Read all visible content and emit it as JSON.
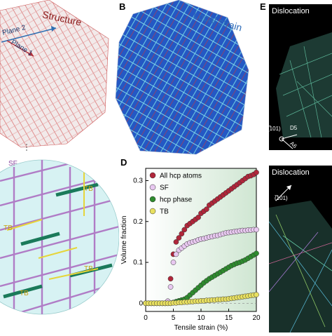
{
  "panels": {
    "a": {
      "title": "Structure",
      "plane2": "Plane 2",
      "plane1": "Plane 1",
      "colors": {
        "atoms": "#d9534f",
        "bg": "#f4f4f4"
      }
    },
    "b": {
      "letter": "B",
      "title": "Local strain",
      "colors": {
        "low": "#1f4fbf",
        "mid": "#5bc0de",
        "high": "#d9302b"
      }
    },
    "c": {
      "labels": [
        "SF",
        "TB",
        "TB",
        "TB",
        "TB"
      ],
      "colors": {
        "sf": "#b07cc6",
        "tb": "#e6d53a",
        "hcp": "#1a7a5a",
        "bg": "#c9eef0"
      }
    },
    "d": {
      "letter": "D"
    },
    "e": {
      "letter": "E",
      "title_top": "Dislocation",
      "title_bottom": "Dislocation",
      "dir_top": "(̅101)",
      "dir_bottom": "(̅101)",
      "axis1": "D5",
      "axis2": "A6"
    }
  },
  "chart_data": {
    "type": "scatter",
    "xlabel": "Tensile strain (%)",
    "ylabel": "Volume fraction",
    "xlim": [
      0,
      20
    ],
    "ylim": [
      -0.02,
      0.33
    ],
    "xticks": [
      "0",
      "5",
      "10",
      "15",
      "20"
    ],
    "yticks": [
      "0",
      "0.1",
      "0.2",
      "0.3"
    ],
    "legend_position": "top-left",
    "series": [
      {
        "name": "All hcp atoms",
        "color": "#b0263a",
        "x": [
          0,
          0.5,
          1,
          1.5,
          2,
          2.5,
          3,
          3.5,
          4,
          4.5,
          5,
          5.5,
          6,
          6.5,
          7,
          7.5,
          8,
          8.5,
          9,
          9.5,
          10,
          10.5,
          11,
          11.5,
          12,
          12.5,
          13,
          13.5,
          14,
          14.5,
          15,
          15.5,
          16,
          16.5,
          17,
          17.5,
          18,
          18.5,
          19,
          19.5,
          20
        ],
        "values": [
          0,
          0,
          0,
          0,
          0,
          0,
          0,
          0,
          0.005,
          0.06,
          0.12,
          0.15,
          0.16,
          0.17,
          0.18,
          0.19,
          0.195,
          0.2,
          0.205,
          0.21,
          0.22,
          0.225,
          0.23,
          0.24,
          0.245,
          0.25,
          0.255,
          0.26,
          0.265,
          0.27,
          0.275,
          0.28,
          0.285,
          0.29,
          0.295,
          0.3,
          0.305,
          0.31,
          0.312,
          0.315,
          0.32
        ]
      },
      {
        "name": "SF",
        "color": "#e8c8f0",
        "x": [
          0,
          0.5,
          1,
          1.5,
          2,
          2.5,
          3,
          3.5,
          4,
          4.5,
          5,
          5.5,
          6,
          6.5,
          7,
          7.5,
          8,
          8.5,
          9,
          9.5,
          10,
          10.5,
          11,
          11.5,
          12,
          12.5,
          13,
          13.5,
          14,
          14.5,
          15,
          15.5,
          16,
          16.5,
          17,
          17.5,
          18,
          18.5,
          19,
          19.5,
          20
        ],
        "values": [
          0,
          0,
          0,
          0,
          0,
          0,
          0,
          0,
          0.005,
          0.04,
          0.1,
          0.12,
          0.13,
          0.135,
          0.14,
          0.145,
          0.148,
          0.15,
          0.152,
          0.155,
          0.157,
          0.158,
          0.16,
          0.162,
          0.163,
          0.165,
          0.166,
          0.168,
          0.17,
          0.172,
          0.173,
          0.174,
          0.175,
          0.176,
          0.177,
          0.178,
          0.178,
          0.179,
          0.179,
          0.18,
          0.18
        ]
      },
      {
        "name": "hcp phase",
        "color": "#2e8b2e",
        "x": [
          0,
          0.5,
          1,
          1.5,
          2,
          2.5,
          3,
          3.5,
          4,
          4.5,
          5,
          5.5,
          6,
          6.5,
          7,
          7.5,
          8,
          8.5,
          9,
          9.5,
          10,
          10.5,
          11,
          11.5,
          12,
          12.5,
          13,
          13.5,
          14,
          14.5,
          15,
          15.5,
          16,
          16.5,
          17,
          17.5,
          18,
          18.5,
          19,
          19.5,
          20
        ],
        "values": [
          0,
          0,
          0,
          0,
          0,
          0,
          0,
          0,
          0,
          0,
          0.002,
          0.004,
          0.006,
          0.008,
          0.01,
          0.014,
          0.02,
          0.026,
          0.032,
          0.038,
          0.044,
          0.05,
          0.055,
          0.06,
          0.064,
          0.068,
          0.072,
          0.076,
          0.08,
          0.084,
          0.088,
          0.092,
          0.095,
          0.098,
          0.1,
          0.103,
          0.106,
          0.11,
          0.114,
          0.118,
          0.122
        ]
      },
      {
        "name": "TB",
        "color": "#e8e060",
        "x": [
          0,
          0.5,
          1,
          1.5,
          2,
          2.5,
          3,
          3.5,
          4,
          4.5,
          5,
          5.5,
          6,
          6.5,
          7,
          7.5,
          8,
          8.5,
          9,
          9.5,
          10,
          10.5,
          11,
          11.5,
          12,
          12.5,
          13,
          13.5,
          14,
          14.5,
          15,
          15.5,
          16,
          16.5,
          17,
          17.5,
          18,
          18.5,
          19,
          19.5,
          20
        ],
        "values": [
          0,
          0,
          0,
          0,
          0,
          0,
          0,
          0,
          0,
          0,
          0.001,
          0.001,
          0.002,
          0.002,
          0.003,
          0.003,
          0.004,
          0.004,
          0.005,
          0.005,
          0.006,
          0.006,
          0.007,
          0.007,
          0.008,
          0.008,
          0.009,
          0.009,
          0.01,
          0.01,
          0.011,
          0.012,
          0.013,
          0.014,
          0.015,
          0.016,
          0.017,
          0.018,
          0.019,
          0.02,
          0.021
        ]
      }
    ]
  }
}
